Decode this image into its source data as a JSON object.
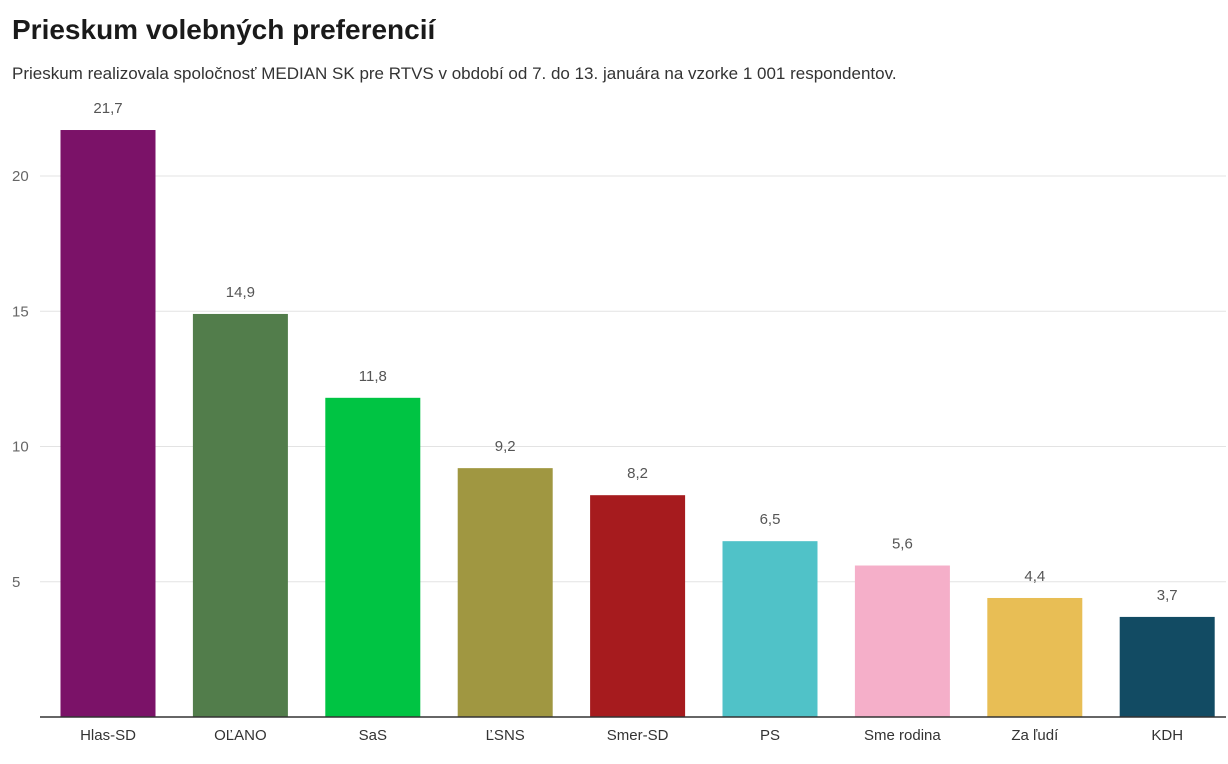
{
  "chart_data": {
    "type": "bar",
    "title": "Prieskum volebných preferencií",
    "subtitle": "Prieskum realizovala spoločnosť MEDIAN SK pre RTVS v období od 7. do 13. januára na vzorke 1 001 respondentov.",
    "categories": [
      "Hlas-SD",
      "OĽANO",
      "SaS",
      "ĽSNS",
      "Smer-SD",
      "PS",
      "Sme rodina",
      "Za ľudí",
      "KDH"
    ],
    "values": [
      21.7,
      14.9,
      11.8,
      9.2,
      8.2,
      6.5,
      5.6,
      4.4,
      3.7
    ],
    "value_labels": [
      "21,7",
      "14,9",
      "11,8",
      "9,2",
      "8,2",
      "6,5",
      "5,6",
      "4,4",
      "3,7"
    ],
    "colors": [
      "#7b1268",
      "#527d4b",
      "#00c443",
      "#a09741",
      "#a61b1e",
      "#50c2c8",
      "#f5afc9",
      "#e8be55",
      "#124b63"
    ],
    "yticks": [
      5,
      10,
      15,
      20
    ],
    "ylim": [
      0,
      23
    ],
    "grid": true,
    "legend": "none"
  }
}
